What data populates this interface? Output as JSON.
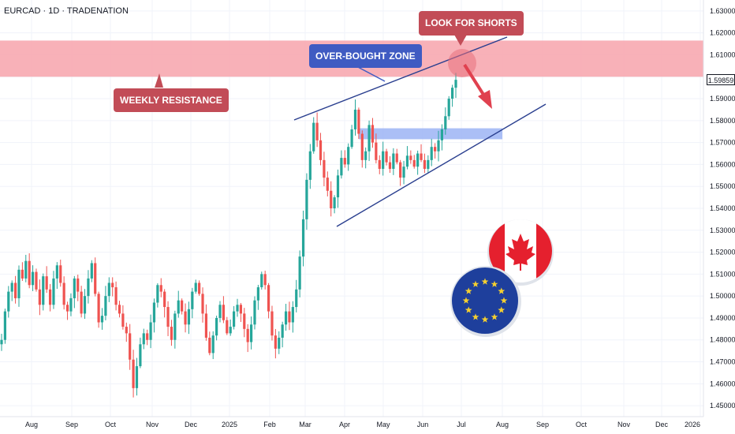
{
  "header": {
    "title": "EURCAD · 1D · TRADENATION"
  },
  "annotations": {
    "weekly_resistance": "WEEKLY RESISTANCE",
    "overbought": "OVER-BOUGHT ZONE",
    "look_for_shorts": "LOOK FOR SHORTS"
  },
  "colors": {
    "up": "#26a69a",
    "down": "#ef5350",
    "resistance_zone": "#f7a8b0",
    "support_zone": "#9cb4f5",
    "trendline": "#2a3f8f",
    "arrow": "#e0414f",
    "callout_red": "#c24c57",
    "callout_blue": "#3f5bc2"
  },
  "icons": [
    "canada-flag-icon",
    "eu-flag-icon"
  ],
  "chart_data": {
    "type": "candlestick",
    "title": "EURCAD · 1D · TRADENATION",
    "x_labels": [
      "Aug",
      "Sep",
      "Oct",
      "Nov",
      "Dec",
      "2025",
      "Feb",
      "Mar",
      "Apr",
      "May",
      "Jun",
      "Jul",
      "Aug",
      "Sep",
      "Oct",
      "Nov",
      "Dec",
      "2026"
    ],
    "y_ticks": [
      "1.63000",
      "1.62000",
      "1.61000",
      "1.60000",
      "1.59000",
      "1.58000",
      "1.57000",
      "1.56000",
      "1.55000",
      "1.54000",
      "1.53000",
      "1.52000",
      "1.51000",
      "1.50000",
      "1.49000",
      "1.48000",
      "1.47000",
      "1.46000",
      "1.45000"
    ],
    "ylim": [
      1.445,
      1.635
    ],
    "current_price": "1.59859",
    "weekly_resistance_zone": [
      1.6,
      1.6165
    ],
    "support_zone": [
      1.5715,
      1.5765
    ],
    "channel_upper": {
      "from": [
        "2025-03-01",
        1.584
      ],
      "to": [
        "2025-07-27",
        1.621
      ]
    },
    "channel_lower": {
      "from": [
        "2025-04-01",
        1.532
      ],
      "to": [
        "2025-08-20",
        1.596
      ]
    },
    "closes": [
      1.48,
      1.493,
      1.502,
      1.506,
      1.499,
      1.512,
      1.508,
      1.516,
      1.505,
      1.511,
      1.503,
      1.496,
      1.509,
      1.503,
      1.496,
      1.508,
      1.514,
      1.506,
      1.496,
      1.493,
      1.499,
      1.508,
      1.502,
      1.492,
      1.5,
      1.508,
      1.515,
      1.501,
      1.488,
      1.491,
      1.5,
      1.506,
      1.504,
      1.496,
      1.492,
      1.486,
      1.483,
      1.471,
      1.458,
      1.468,
      1.478,
      1.483,
      1.48,
      1.488,
      1.497,
      1.505,
      1.502,
      1.495,
      1.486,
      1.48,
      1.492,
      1.498,
      1.493,
      1.487,
      1.494,
      1.502,
      1.506,
      1.501,
      1.492,
      1.481,
      1.474,
      1.482,
      1.49,
      1.496,
      1.489,
      1.483,
      1.486,
      1.493,
      1.496,
      1.492,
      1.485,
      1.479,
      1.487,
      1.498,
      1.504,
      1.51,
      1.505,
      1.493,
      1.482,
      1.476,
      1.481,
      1.487,
      1.493,
      1.488,
      1.495,
      1.503,
      1.518,
      1.535,
      1.553,
      1.566,
      1.579,
      1.571,
      1.562,
      1.554,
      1.548,
      1.54,
      1.545,
      1.555,
      1.563,
      1.56,
      1.568,
      1.576,
      1.585,
      1.574,
      1.562,
      1.566,
      1.578,
      1.57,
      1.562,
      1.558,
      1.566,
      1.561,
      1.558,
      1.565,
      1.561,
      1.554,
      1.559,
      1.564,
      1.562,
      1.559,
      1.565,
      1.562,
      1.558,
      1.562,
      1.568,
      1.566,
      1.571,
      1.576,
      1.582,
      1.59,
      1.595,
      1.5986
    ]
  }
}
